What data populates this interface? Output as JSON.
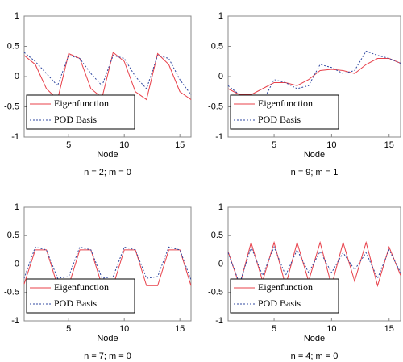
{
  "chart_data": [
    {
      "type": "line",
      "title": "n = 2; m = 0",
      "xlabel": "Node",
      "x": [
        1,
        2,
        3,
        4,
        5,
        6,
        7,
        8,
        9,
        10,
        11,
        12,
        13,
        14,
        15,
        16
      ],
      "xlim": [
        1,
        16
      ],
      "xticks": [
        5,
        10,
        15
      ],
      "ylim": [
        -1,
        1
      ],
      "yticks": [
        -1,
        -0.5,
        0,
        0.5,
        1
      ],
      "legend": "lower left",
      "series": [
        {
          "name": "Eigenfunction",
          "color": "#e8404a",
          "style": "solid",
          "values": [
            0.35,
            0.2,
            -0.2,
            -0.38,
            0.38,
            0.3,
            -0.2,
            -0.35,
            0.4,
            0.25,
            -0.25,
            -0.38,
            0.38,
            0.2,
            -0.25,
            -0.38
          ]
        },
        {
          "name": "POD Basis",
          "color": "#3048a0",
          "style": "dotted",
          "values": [
            0.4,
            0.25,
            0.05,
            -0.15,
            0.35,
            0.3,
            0.05,
            -0.15,
            0.35,
            0.3,
            0.0,
            -0.2,
            0.35,
            0.3,
            -0.05,
            -0.3
          ]
        }
      ]
    },
    {
      "type": "line",
      "title": "n = 9; m = 1",
      "xlabel": "Node",
      "x": [
        1,
        2,
        3,
        4,
        5,
        6,
        7,
        8,
        9,
        10,
        11,
        12,
        13,
        14,
        15,
        16
      ],
      "xlim": [
        1,
        16
      ],
      "xticks": [
        5,
        10,
        15
      ],
      "ylim": [
        -1,
        1
      ],
      "yticks": [
        -1,
        -0.5,
        0,
        0.5,
        1
      ],
      "legend": "lower left",
      "series": [
        {
          "name": "Eigenfunction",
          "color": "#e8404a",
          "style": "solid",
          "values": [
            -0.2,
            -0.3,
            -0.3,
            -0.2,
            -0.1,
            -0.1,
            -0.15,
            -0.05,
            0.1,
            0.12,
            0.1,
            0.05,
            0.2,
            0.3,
            0.3,
            0.22
          ]
        },
        {
          "name": "POD Basis",
          "color": "#3048a0",
          "style": "dotted",
          "values": [
            -0.15,
            -0.3,
            -0.35,
            -0.42,
            -0.05,
            -0.1,
            -0.2,
            -0.15,
            0.2,
            0.15,
            0.05,
            0.1,
            0.42,
            0.35,
            0.3,
            0.22
          ]
        }
      ]
    },
    {
      "type": "line",
      "title": "n = 7; m = 0",
      "xlabel": "Node",
      "x": [
        1,
        2,
        3,
        4,
        5,
        6,
        7,
        8,
        9,
        10,
        11,
        12,
        13,
        14,
        15,
        16
      ],
      "xlim": [
        1,
        16
      ],
      "xticks": [
        5,
        10,
        15
      ],
      "ylim": [
        -1,
        1
      ],
      "yticks": [
        -1,
        -0.5,
        0,
        0.5,
        1
      ],
      "legend": "lower left",
      "series": [
        {
          "name": "Eigenfunction",
          "color": "#e8404a",
          "style": "solid",
          "values": [
            -0.35,
            0.25,
            0.25,
            -0.38,
            -0.38,
            0.25,
            0.25,
            -0.38,
            -0.38,
            0.25,
            0.25,
            -0.38,
            -0.38,
            0.25,
            0.25,
            -0.38
          ]
        },
        {
          "name": "POD Basis",
          "color": "#3048a0",
          "style": "dotted",
          "values": [
            -0.25,
            0.3,
            0.25,
            -0.25,
            -0.22,
            0.3,
            0.25,
            -0.25,
            -0.22,
            0.3,
            0.25,
            -0.25,
            -0.22,
            0.3,
            0.25,
            -0.28
          ]
        }
      ]
    },
    {
      "type": "line",
      "title": "n = 4; m = 0",
      "xlabel": "Node",
      "x": [
        1,
        2,
        3,
        4,
        5,
        6,
        7,
        8,
        9,
        10,
        11,
        12,
        13,
        14,
        15,
        16
      ],
      "xlim": [
        1,
        16
      ],
      "xticks": [
        5,
        10,
        15
      ],
      "ylim": [
        -1,
        1
      ],
      "yticks": [
        -1,
        -0.5,
        0,
        0.5,
        1
      ],
      "legend": "lower left",
      "series": [
        {
          "name": "Eigenfunction",
          "color": "#e8404a",
          "style": "solid",
          "values": [
            0.22,
            -0.38,
            0.38,
            -0.3,
            0.38,
            -0.38,
            0.38,
            -0.3,
            0.38,
            -0.38,
            0.38,
            -0.3,
            0.38,
            -0.38,
            0.3,
            -0.2
          ]
        },
        {
          "name": "POD Basis",
          "color": "#3048a0",
          "style": "dotted",
          "values": [
            0.2,
            -0.35,
            0.3,
            -0.2,
            0.3,
            -0.2,
            0.25,
            -0.15,
            0.22,
            -0.15,
            0.2,
            -0.1,
            0.2,
            -0.25,
            0.25,
            -0.15
          ]
        }
      ]
    }
  ]
}
